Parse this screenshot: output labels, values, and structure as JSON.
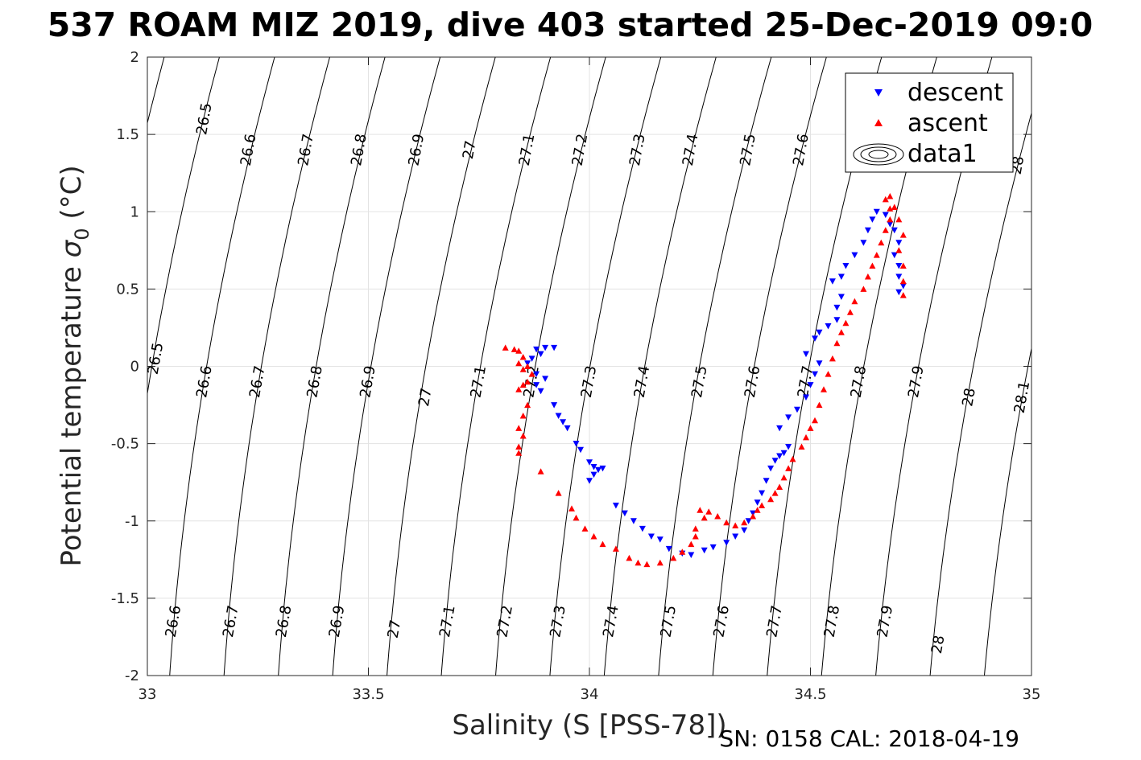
{
  "chart_data": {
    "type": "scatter",
    "title": "537 ROAM MIZ 2019, dive 403 started 25-Dec-2019 09:0",
    "xlabel": "Salinity (S [PSS-78])",
    "ylabel_main": "Potential temperature ",
    "ylabel_sym": "σ",
    "ylabel_sub": "0",
    "ylabel_unit": " (°C)",
    "xlim": [
      33,
      35
    ],
    "ylim": [
      -2,
      2
    ],
    "xticks": [
      33,
      33.5,
      34,
      34.5,
      35
    ],
    "xtick_labels": [
      "33",
      "33.5",
      "34",
      "34.5",
      "35"
    ],
    "yticks": [
      -2,
      -1.5,
      -1,
      -0.5,
      0,
      0.5,
      1,
      1.5,
      2
    ],
    "ytick_labels": [
      "-2",
      "-1.5",
      "-1",
      "-0.5",
      "0",
      "0.5",
      "1",
      "1.5",
      "2"
    ],
    "grid": true,
    "legend_position": "top-right",
    "legend": [
      "descent",
      "ascent",
      "data1"
    ],
    "footer": "SN: 0158  CAL: 2018-04-19",
    "contour_labels": [
      {
        "text": "26.5",
        "s": 33.13,
        "t": 1.6
      },
      {
        "text": "26.6",
        "s": 33.23,
        "t": 1.4
      },
      {
        "text": "26.7",
        "s": 33.36,
        "t": 1.4
      },
      {
        "text": "26.8",
        "s": 33.48,
        "t": 1.4
      },
      {
        "text": "26.9",
        "s": 33.61,
        "t": 1.4
      },
      {
        "text": "27",
        "s": 33.73,
        "t": 1.4
      },
      {
        "text": "27.1",
        "s": 33.86,
        "t": 1.4
      },
      {
        "text": "27.2",
        "s": 33.98,
        "t": 1.4
      },
      {
        "text": "27.3",
        "s": 34.11,
        "t": 1.4
      },
      {
        "text": "27.4",
        "s": 34.23,
        "t": 1.4
      },
      {
        "text": "27.5",
        "s": 34.36,
        "t": 1.4
      },
      {
        "text": "27.6",
        "s": 34.48,
        "t": 1.4
      },
      {
        "text": "28",
        "s": 34.97,
        "t": 1.3
      },
      {
        "text": "26.5",
        "s": 33.02,
        "t": 0.05
      },
      {
        "text": "26.6",
        "s": 33.13,
        "t": -0.1
      },
      {
        "text": "26.7",
        "s": 33.25,
        "t": -0.1
      },
      {
        "text": "26.8",
        "s": 33.38,
        "t": -0.1
      },
      {
        "text": "26.9",
        "s": 33.5,
        "t": -0.1
      },
      {
        "text": "27",
        "s": 33.63,
        "t": -0.2
      },
      {
        "text": "27.1",
        "s": 33.75,
        "t": -0.1
      },
      {
        "text": "27.2",
        "s": 33.87,
        "t": -0.1
      },
      {
        "text": "27.3",
        "s": 34.0,
        "t": -0.1
      },
      {
        "text": "27.4",
        "s": 34.12,
        "t": -0.1
      },
      {
        "text": "27.5",
        "s": 34.25,
        "t": -0.1
      },
      {
        "text": "27.6",
        "s": 34.37,
        "t": -0.1
      },
      {
        "text": "27.7",
        "s": 34.49,
        "t": -0.1
      },
      {
        "text": "27.8",
        "s": 34.61,
        "t": -0.1
      },
      {
        "text": "27.9",
        "s": 34.74,
        "t": -0.1
      },
      {
        "text": "28",
        "s": 34.86,
        "t": -0.2
      },
      {
        "text": "28.1",
        "s": 34.98,
        "t": -0.2
      },
      {
        "text": "26.6",
        "s": 33.06,
        "t": -1.65
      },
      {
        "text": "26.7",
        "s": 33.19,
        "t": -1.65
      },
      {
        "text": "26.8",
        "s": 33.31,
        "t": -1.65
      },
      {
        "text": "26.9",
        "s": 33.43,
        "t": -1.65
      },
      {
        "text": "27",
        "s": 33.56,
        "t": -1.7
      },
      {
        "text": "27.1",
        "s": 33.68,
        "t": -1.65
      },
      {
        "text": "27.2",
        "s": 33.81,
        "t": -1.65
      },
      {
        "text": "27.3",
        "s": 33.93,
        "t": -1.65
      },
      {
        "text": "27.4",
        "s": 34.05,
        "t": -1.65
      },
      {
        "text": "27.5",
        "s": 34.18,
        "t": -1.65
      },
      {
        "text": "27.6",
        "s": 34.3,
        "t": -1.65
      },
      {
        "text": "27.7",
        "s": 34.42,
        "t": -1.65
      },
      {
        "text": "27.8",
        "s": 34.55,
        "t": -1.65
      },
      {
        "text": "27.9",
        "s": 34.67,
        "t": -1.65
      },
      {
        "text": "28",
        "s": 34.79,
        "t": -1.8
      }
    ],
    "series": [
      {
        "name": "descent",
        "color": "#0000ff",
        "marker": "triangle-down",
        "points": [
          [
            33.9,
            0.12
          ],
          [
            33.88,
            0.11
          ],
          [
            33.92,
            0.12
          ],
          [
            33.89,
            0.08
          ],
          [
            33.87,
            0.05
          ],
          [
            33.86,
            0.02
          ],
          [
            33.88,
            -0.05
          ],
          [
            33.9,
            -0.08
          ],
          [
            33.88,
            -0.12
          ],
          [
            33.89,
            -0.16
          ],
          [
            33.92,
            -0.25
          ],
          [
            33.93,
            -0.32
          ],
          [
            33.94,
            -0.36
          ],
          [
            33.95,
            -0.4
          ],
          [
            33.97,
            -0.5
          ],
          [
            33.98,
            -0.54
          ],
          [
            34.0,
            -0.62
          ],
          [
            34.01,
            -0.65
          ],
          [
            34.02,
            -0.67
          ],
          [
            34.03,
            -0.66
          ],
          [
            34.01,
            -0.7
          ],
          [
            34.0,
            -0.74
          ],
          [
            34.06,
            -0.9
          ],
          [
            34.08,
            -0.95
          ],
          [
            34.1,
            -1.0
          ],
          [
            34.12,
            -1.05
          ],
          [
            34.14,
            -1.1
          ],
          [
            34.16,
            -1.12
          ],
          [
            34.18,
            -1.18
          ],
          [
            34.21,
            -1.21
          ],
          [
            34.23,
            -1.22
          ],
          [
            34.26,
            -1.19
          ],
          [
            34.28,
            -1.17
          ],
          [
            34.31,
            -1.14
          ],
          [
            34.33,
            -1.1
          ],
          [
            34.35,
            -1.06
          ],
          [
            34.36,
            -1.0
          ],
          [
            34.37,
            -0.95
          ],
          [
            34.38,
            -0.88
          ],
          [
            34.39,
            -0.82
          ],
          [
            34.4,
            -0.74
          ],
          [
            34.41,
            -0.66
          ],
          [
            34.42,
            -0.61
          ],
          [
            34.43,
            -0.58
          ],
          [
            34.44,
            -0.56
          ],
          [
            34.45,
            -0.52
          ],
          [
            34.43,
            -0.4
          ],
          [
            34.45,
            -0.33
          ],
          [
            34.47,
            -0.28
          ],
          [
            34.49,
            -0.2
          ],
          [
            34.5,
            -0.12
          ],
          [
            34.51,
            -0.05
          ],
          [
            34.52,
            0.02
          ],
          [
            34.49,
            0.08
          ],
          [
            34.51,
            0.18
          ],
          [
            34.52,
            0.22
          ],
          [
            34.54,
            0.26
          ],
          [
            34.56,
            0.3
          ],
          [
            34.56,
            0.38
          ],
          [
            34.57,
            0.45
          ],
          [
            34.55,
            0.55
          ],
          [
            34.57,
            0.58
          ],
          [
            34.58,
            0.65
          ],
          [
            34.6,
            0.72
          ],
          [
            34.62,
            0.8
          ],
          [
            34.63,
            0.88
          ],
          [
            34.64,
            0.95
          ],
          [
            34.65,
            1.0
          ],
          [
            34.67,
            0.98
          ],
          [
            34.68,
            0.92
          ],
          [
            34.69,
            0.88
          ],
          [
            34.7,
            0.8
          ],
          [
            34.69,
            0.72
          ],
          [
            34.7,
            0.65
          ],
          [
            34.7,
            0.58
          ],
          [
            34.71,
            0.52
          ],
          [
            34.7,
            0.48
          ]
        ]
      },
      {
        "name": "ascent",
        "color": "#ff0000",
        "marker": "triangle-up",
        "points": [
          [
            33.81,
            0.12
          ],
          [
            33.83,
            0.11
          ],
          [
            33.84,
            0.1
          ],
          [
            33.85,
            0.06
          ],
          [
            33.84,
            0.02
          ],
          [
            33.85,
            -0.02
          ],
          [
            33.86,
            0.0
          ],
          [
            33.87,
            -0.05
          ],
          [
            33.86,
            -0.1
          ],
          [
            33.85,
            -0.12
          ],
          [
            33.84,
            -0.15
          ],
          [
            33.86,
            -0.25
          ],
          [
            33.85,
            -0.32
          ],
          [
            33.84,
            -0.4
          ],
          [
            33.85,
            -0.45
          ],
          [
            33.84,
            -0.52
          ],
          [
            33.84,
            -0.56
          ],
          [
            33.89,
            -0.68
          ],
          [
            33.93,
            -0.82
          ],
          [
            33.96,
            -0.92
          ],
          [
            33.97,
            -0.98
          ],
          [
            33.99,
            -1.05
          ],
          [
            34.01,
            -1.1
          ],
          [
            34.03,
            -1.15
          ],
          [
            34.06,
            -1.18
          ],
          [
            34.09,
            -1.24
          ],
          [
            34.11,
            -1.27
          ],
          [
            34.13,
            -1.28
          ],
          [
            34.16,
            -1.27
          ],
          [
            34.19,
            -1.24
          ],
          [
            34.21,
            -1.2
          ],
          [
            34.23,
            -1.15
          ],
          [
            34.24,
            -1.1
          ],
          [
            34.24,
            -1.05
          ],
          [
            34.26,
            -0.98
          ],
          [
            34.25,
            -0.93
          ],
          [
            34.27,
            -0.94
          ],
          [
            34.29,
            -0.97
          ],
          [
            34.31,
            -1.01
          ],
          [
            34.33,
            -1.03
          ],
          [
            34.35,
            -1.01
          ],
          [
            34.37,
            -0.97
          ],
          [
            34.38,
            -0.93
          ],
          [
            34.39,
            -0.9
          ],
          [
            34.41,
            -0.86
          ],
          [
            34.42,
            -0.82
          ],
          [
            34.43,
            -0.78
          ],
          [
            34.44,
            -0.72
          ],
          [
            34.45,
            -0.66
          ],
          [
            34.46,
            -0.6
          ],
          [
            34.48,
            -0.52
          ],
          [
            34.49,
            -0.46
          ],
          [
            34.5,
            -0.4
          ],
          [
            34.51,
            -0.35
          ],
          [
            34.52,
            -0.25
          ],
          [
            34.53,
            -0.15
          ],
          [
            34.54,
            -0.05
          ],
          [
            34.55,
            0.05
          ],
          [
            34.56,
            0.15
          ],
          [
            34.57,
            0.22
          ],
          [
            34.58,
            0.28
          ],
          [
            34.59,
            0.35
          ],
          [
            34.6,
            0.42
          ],
          [
            34.62,
            0.5
          ],
          [
            34.63,
            0.58
          ],
          [
            34.64,
            0.65
          ],
          [
            34.65,
            0.72
          ],
          [
            34.66,
            0.8
          ],
          [
            34.67,
            0.88
          ],
          [
            34.68,
            0.95
          ],
          [
            34.68,
            1.02
          ],
          [
            34.67,
            1.08
          ],
          [
            34.68,
            1.1
          ],
          [
            34.69,
            1.03
          ],
          [
            34.7,
            0.95
          ],
          [
            34.71,
            0.85
          ],
          [
            34.7,
            0.75
          ],
          [
            34.71,
            0.65
          ],
          [
            34.71,
            0.55
          ],
          [
            34.71,
            0.46
          ]
        ]
      }
    ]
  }
}
